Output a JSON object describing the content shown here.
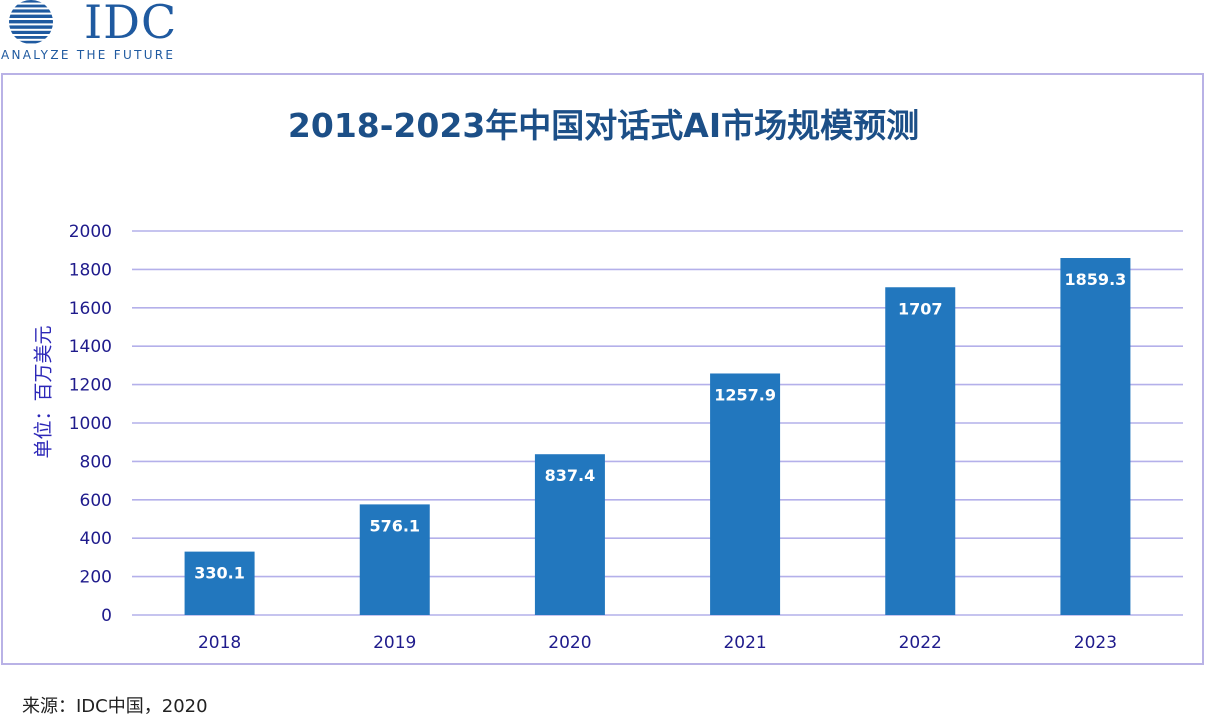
{
  "logo": {
    "name": "IDC",
    "tagline": "ANALYZE THE FUTURE"
  },
  "source_note": "来源：IDC中国，2020",
  "colors": {
    "bar": "#2277be",
    "grid": "#b4b0ea",
    "axis_text": "#1f1b8c",
    "title": "#1c4f87"
  },
  "chart_data": {
    "type": "bar",
    "title": "2018-2023年中国对话式AI市场规模预测",
    "xlabel": "",
    "ylabel": "单位：百万美元",
    "categories": [
      "2018",
      "2019",
      "2020",
      "2021",
      "2022",
      "2023"
    ],
    "values": [
      330.1,
      576.1,
      837.4,
      1257.9,
      1707,
      1859.3
    ],
    "data_labels": [
      "330.1",
      "576.1",
      "837.4",
      "1257.9",
      "1707",
      "1859.3"
    ],
    "ylim": [
      0,
      2000
    ],
    "yticks": [
      "0",
      "200",
      "400",
      "600",
      "800",
      "1000",
      "1200",
      "1400",
      "1600",
      "1800",
      "2000"
    ],
    "grid": true,
    "legend": false
  }
}
